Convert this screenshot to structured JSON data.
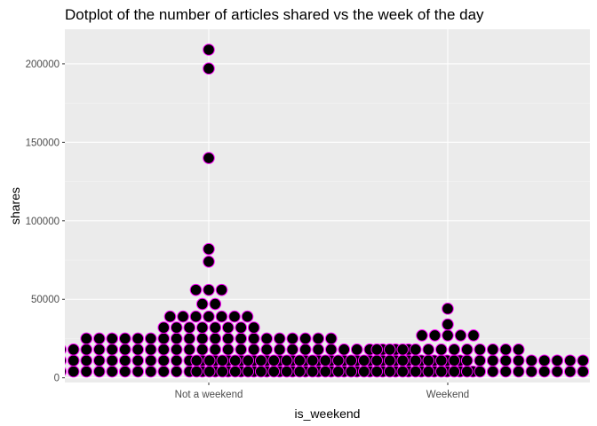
{
  "chart_data": {
    "type": "dotplot",
    "title": "Dotplot of the number of articles shared vs the week of the day",
    "xlabel": "is_weekend",
    "ylabel": "shares",
    "categories": [
      "Not a weekend",
      "Weekend"
    ],
    "ylim": [
      -3000,
      222000
    ],
    "yticks": [
      0,
      50000,
      100000,
      150000,
      200000
    ],
    "ytick_labels": [
      "0",
      "50000",
      "100000",
      "150000",
      "200000"
    ],
    "bin_width": 7000,
    "grid": true,
    "legend": "none",
    "colors": {
      "panel": "#ebebeb",
      "grid_major": "#ffffff",
      "grid_minor": "#f3f3f3",
      "dot_fill": "#000000",
      "dot_stroke": "#ff00ff"
    },
    "series": [
      {
        "category": "Not a weekend",
        "bins": [
          {
            "y": 4000,
            "count": 42
          },
          {
            "y": 11000,
            "count": 40
          },
          {
            "y": 18000,
            "count": 32
          },
          {
            "y": 25000,
            "count": 20
          },
          {
            "y": 32000,
            "count": 8
          },
          {
            "y": 39000,
            "count": 7
          },
          {
            "y": 47000,
            "count": 2
          },
          {
            "y": 56000,
            "count": 3
          },
          {
            "y": 74000,
            "count": 1
          },
          {
            "y": 82000,
            "count": 1
          },
          {
            "y": 140000,
            "count": 1
          },
          {
            "y": 197000,
            "count": 1
          },
          {
            "y": 209000,
            "count": 1
          }
        ]
      },
      {
        "category": "Weekend",
        "bins": [
          {
            "y": 4000,
            "count": 40
          },
          {
            "y": 11000,
            "count": 40
          },
          {
            "y": 18000,
            "count": 12
          },
          {
            "y": 27000,
            "count": 5
          },
          {
            "y": 34000,
            "count": 1
          },
          {
            "y": 44000,
            "count": 1
          }
        ]
      }
    ]
  }
}
